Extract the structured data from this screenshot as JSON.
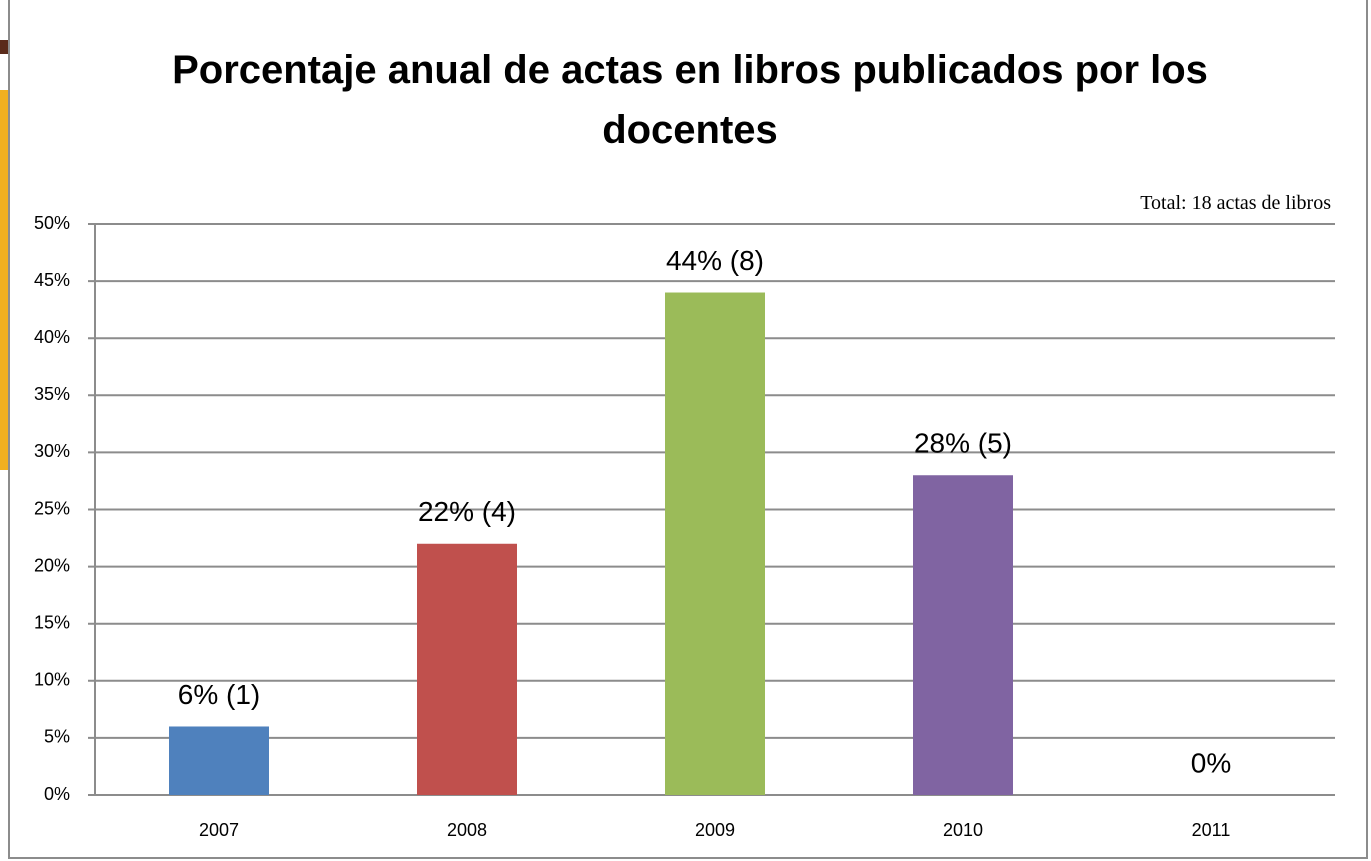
{
  "chart_data": {
    "type": "bar",
    "title": "Porcentaje anual de actas en libros publicados por los docentes",
    "subtitle": "Total: 18 actas de libros",
    "categories": [
      "2007",
      "2008",
      "2009",
      "2010",
      "2011"
    ],
    "values": [
      6,
      22,
      44,
      28,
      0
    ],
    "value_labels": [
      "6% (1)",
      "22% (4)",
      "44% (8)",
      "28% (5)",
      "0%"
    ],
    "colors": [
      "#4f81bd",
      "#c0504d",
      "#9bbb59",
      "#8064a2",
      "#4bacc6"
    ],
    "ylim": [
      0,
      50
    ],
    "yticks": [
      {
        "value": 0,
        "label": "0%"
      },
      {
        "value": 5,
        "label": "5%"
      },
      {
        "value": 10,
        "label": "10%"
      },
      {
        "value": 15,
        "label": "15%"
      },
      {
        "value": 20,
        "label": "20%"
      },
      {
        "value": 25,
        "label": "25%"
      },
      {
        "value": 30,
        "label": "30%"
      },
      {
        "value": 35,
        "label": "35%"
      },
      {
        "value": 40,
        "label": "40%"
      },
      {
        "value": 45,
        "label": "45%"
      },
      {
        "value": 50,
        "label": "50%"
      }
    ],
    "grid": true
  }
}
